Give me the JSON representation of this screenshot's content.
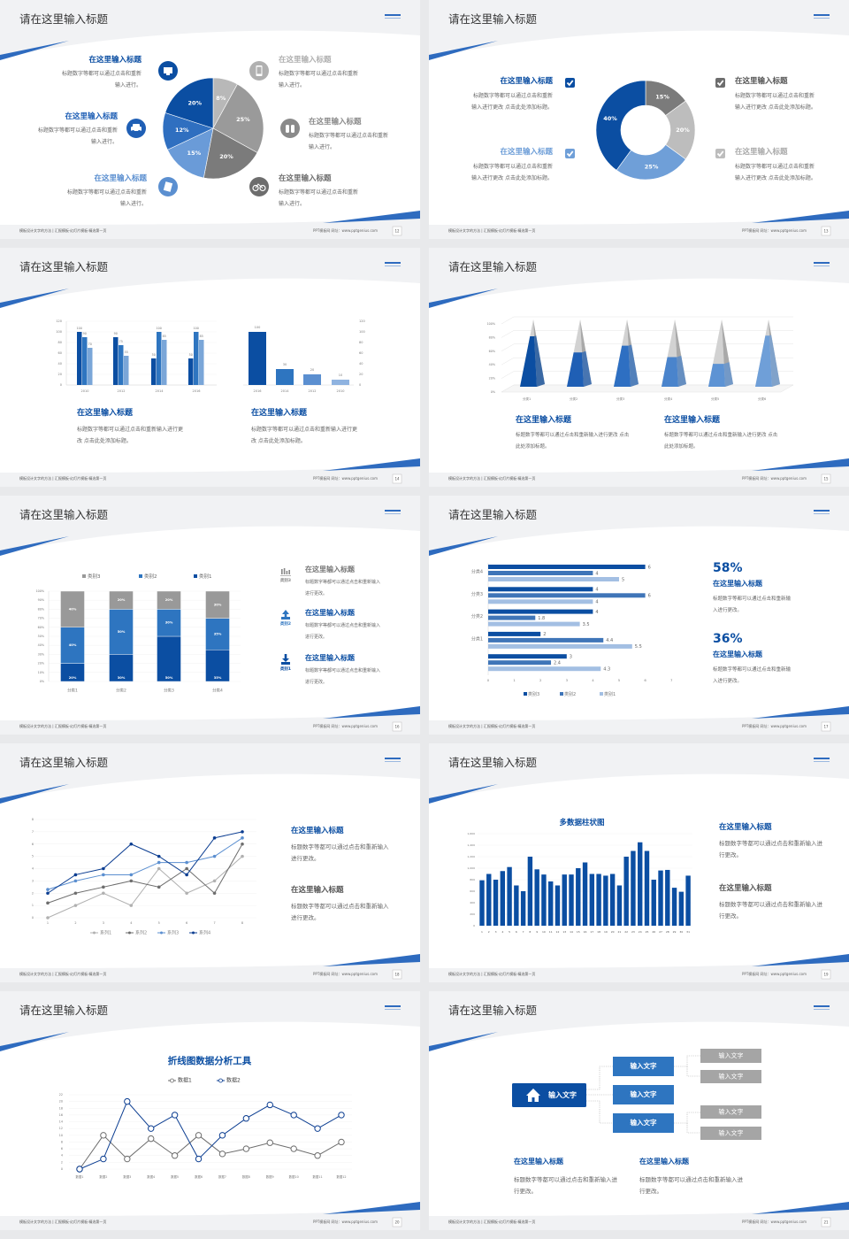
{
  "deck": {
    "slide_title": "请在这里输入标题",
    "footer_left": "模板设计文字的方法 | 汇报模板·幻灯片模板·精选第一页",
    "footer_right": "PPT模板网  网址：www.pptgenius.com",
    "colors": {
      "dark_blue": "#0b4ea2",
      "mid_blue": "#2e75c0",
      "light_blue": "#6f9fd8",
      "pale_blue": "#a3bfe3",
      "gray_light": "#bdbdbd",
      "gray": "#999999",
      "gray_dark": "#6d6d6d",
      "accent_stripe": "#2e6bbf"
    }
  },
  "slides": [
    {
      "page": "12",
      "layout": "pie",
      "chart": 0,
      "items": [
        {
          "title": "在这里输入标题",
          "desc": "标题数字等都可以通过点击和重新输入进行。",
          "icon": "monitor-icon",
          "color": "#0b4ea2"
        },
        {
          "title": "在这里输入标题",
          "desc": "标题数字等都可以通过点击和重新输入进行。",
          "icon": "car-icon",
          "color": "#1f5fb5"
        },
        {
          "title": "在这里输入标题",
          "desc": "标题数字等都可以通过点击和重新输入进行。",
          "icon": "book-icon",
          "color": "#5b8fd0"
        },
        {
          "title": "在这里输入标题",
          "desc": "标题数字等都可以通过点击和重新输入进行。",
          "icon": "phone-icon",
          "color": "#b0b0b0"
        },
        {
          "title": "在这里输入标题",
          "desc": "标题数字等都可以通过点击和重新输入进行。",
          "icon": "binoculars-icon",
          "color": "#8a8a8a"
        },
        {
          "title": "在这里输入标题",
          "desc": "标题数字等都可以通过点击和重新输入进行。",
          "icon": "bicycle-icon",
          "color": "#6d6d6d"
        }
      ]
    },
    {
      "page": "13",
      "layout": "donut",
      "chart": 1,
      "items": [
        {
          "title": "在这里输入标题",
          "desc": "标题数字等都可以通过点击和重新输入进行更改 点击此处添加标题。",
          "icon": "checkbox-icon",
          "color": "#0b4ea2"
        },
        {
          "title": "在这里输入标题",
          "desc": "标题数字等都可以通过点击和重新输入进行更改 点击此处添加标题。",
          "icon": "checkbox-icon",
          "color": "#6f9fd8"
        },
        {
          "title": "在这里输入标题",
          "desc": "标题数字等都可以通过点击和重新输入进行更改 点击此处添加标题。",
          "icon": "checkbox-icon",
          "color": "#6d6d6d"
        },
        {
          "title": "在这里输入标题",
          "desc": "标题数字等都可以通过点击和重新输入进行更改 点击此处添加标题。",
          "icon": "checkbox-icon",
          "color": "#bdbdbd"
        }
      ]
    },
    {
      "page": "14",
      "layout": "bars2",
      "charts": [
        2,
        3
      ],
      "items": [
        {
          "title": "在这里输入标题",
          "desc": "标题数字等都可以通过点击和重新输入进行更改 点击此处添加标题。"
        },
        {
          "title": "在这里输入标题",
          "desc": "标题数字等都可以通过点击和重新输入进行更改 点击此处添加标题。"
        }
      ]
    },
    {
      "page": "15",
      "layout": "pyramid",
      "chart": 4,
      "items": [
        {
          "title": "在这里输入标题",
          "desc": "标题数字等都可以通过点击和重新输入进行更改 点击此处添加标题。"
        },
        {
          "title": "在这里输入标题",
          "desc": "标题数字等都可以通过点击和重新输入进行更改 点击此处添加标题。"
        }
      ]
    },
    {
      "page": "16",
      "layout": "stacked",
      "chart": 5,
      "items": [
        {
          "title": "在这里输入标题",
          "desc": "标题数字等都可以通过点击和重新输入进行更改。",
          "icon": "bar-chart-icon",
          "tag": "类别3",
          "color": "#888888"
        },
        {
          "title": "在这里输入标题",
          "desc": "标题数字等都可以通过点击和重新输入进行更改。",
          "icon": "upload-icon",
          "tag": "类别2",
          "color": "#2e75c0"
        },
        {
          "title": "在这里输入标题",
          "desc": "标题数字等都可以通过点击和重新输入进行更改。",
          "icon": "download-icon",
          "tag": "类别1",
          "color": "#0b4ea2"
        }
      ]
    },
    {
      "page": "17",
      "layout": "hbar",
      "chart": 6,
      "items": [
        {
          "stat": "58%",
          "title": "在这里输入标题",
          "desc": "标题数字等都可以通过点击和重新输入进行更改。"
        },
        {
          "stat": "36%",
          "title": "在这里输入标题",
          "desc": "标题数字等都可以通过点击和重新输入进行更改。"
        }
      ]
    },
    {
      "page": "18",
      "layout": "line4",
      "chart": 7,
      "items": [
        {
          "title": "在这里输入标题",
          "desc": "标题数字等都可以通过点击和重新输入进行更改。",
          "color": "#0b4ea2"
        },
        {
          "title": "在这里输入标题",
          "desc": "标题数字等都可以通过点击和重新输入进行更改。",
          "color": "#555555"
        }
      ]
    },
    {
      "page": "19",
      "layout": "bar31",
      "chart": 8,
      "items": [
        {
          "title": "在这里输入标题",
          "desc": "标题数字等都可以通过点击和重新输入进行更改。",
          "color": "#0b4ea2"
        },
        {
          "title": "在这里输入标题",
          "desc": "标题数字等都可以通过点击和重新输入进行更改。",
          "color": "#555555"
        }
      ]
    },
    {
      "page": "20",
      "layout": "line2",
      "chart": 9,
      "items": []
    },
    {
      "page": "21",
      "layout": "tree",
      "tree": {
        "root": "输入文字",
        "root_icon": "home-icon",
        "mid": [
          "输入文字",
          "输入文字",
          "输入文字"
        ],
        "leaves": [
          "输入文字",
          "输入文字",
          "输入文字",
          "输入文字"
        ]
      },
      "items": [
        {
          "title": "在这里输入标题",
          "desc": "标题数字等都可以通过点击和重新输入进行更改。"
        },
        {
          "title": "在这里输入标题",
          "desc": "标题数字等都可以通过点击和重新输入进行更改。"
        }
      ]
    }
  ],
  "chart_data": [
    {
      "type": "pie",
      "slices": [
        {
          "label": "8%",
          "value": 8,
          "color": "#b8b8b8"
        },
        {
          "label": "25%",
          "value": 25,
          "color": "#9a9a9a"
        },
        {
          "label": "20%",
          "value": 20,
          "color": "#7b7b7b"
        },
        {
          "label": "15%",
          "value": 15,
          "color": "#6a9bd8"
        },
        {
          "label": "12%",
          "value": 12,
          "color": "#2f6fc0"
        },
        {
          "label": "20%",
          "value": 20,
          "color": "#0b4ea2"
        }
      ]
    },
    {
      "type": "pie",
      "donut": true,
      "slices": [
        {
          "label": "15%",
          "value": 15,
          "color": "#7b7b7b"
        },
        {
          "label": "20%",
          "value": 20,
          "color": "#bdbdbd"
        },
        {
          "label": "25%",
          "value": 25,
          "color": "#6f9fd8"
        },
        {
          "label": "40%",
          "value": 40,
          "color": "#0b4ea2"
        }
      ]
    },
    {
      "type": "bar",
      "categories": [
        "2010",
        "2012",
        "2014",
        "2016"
      ],
      "series": [
        {
          "values": [
            100,
            90,
            50,
            50
          ],
          "color": "#0b4ea2"
        },
        {
          "values": [
            90,
            75,
            100,
            100
          ],
          "color": "#2e75c0"
        },
        {
          "values": [
            70,
            55,
            85,
            85
          ],
          "color": "#7aa6d8"
        }
      ],
      "ylim": [
        0,
        120
      ],
      "yticks": [
        0,
        20,
        40,
        60,
        80,
        100,
        120
      ],
      "grid": true,
      "data_labels": true
    },
    {
      "type": "bar",
      "categories": [
        "2016",
        "2014",
        "2012",
        "2010"
      ],
      "values": [
        100,
        30,
        20,
        10
      ],
      "colors": [
        "#0b4ea2",
        "#2e75c0",
        "#5b8fd0",
        "#8fb3e0"
      ],
      "ylim": [
        0,
        120
      ],
      "yticks": [
        0,
        20,
        40,
        60,
        80,
        100,
        120
      ],
      "axis_side": "right",
      "data_labels": true
    },
    {
      "type": "bar",
      "style": "3d-pyramid",
      "categories": [
        "分类1",
        "分类2",
        "分类3",
        "分类4",
        "分类5",
        "分类6"
      ],
      "values": [
        75,
        51,
        61,
        44,
        34,
        76
      ],
      "colors": [
        "#0b4ea2",
        "#1f5fb5",
        "#2e6fc2",
        "#4a84cc",
        "#5d93d4",
        "#6f9fd8"
      ],
      "ylim": [
        0,
        100
      ],
      "yticks": [
        "0%",
        "20%",
        "40%",
        "60%",
        "80%",
        "100%"
      ],
      "grid": true
    },
    {
      "type": "bar",
      "stacked": true,
      "categories": [
        "分类1",
        "分类2",
        "分类3",
        "分类4"
      ],
      "series": [
        {
          "name": "类别1",
          "values": [
            20,
            30,
            50,
            35
          ],
          "color": "#0b4ea2"
        },
        {
          "name": "类别2",
          "values": [
            40,
            50,
            30,
            35
          ],
          "color": "#2e75c0"
        },
        {
          "name": "类别3",
          "values": [
            40,
            20,
            20,
            30
          ],
          "color": "#999999"
        }
      ],
      "legend_order": [
        2,
        1,
        0
      ],
      "legend": "top",
      "ylim": [
        0,
        100
      ],
      "yticks": [
        "0%",
        "10%",
        "20%",
        "30%",
        "40%",
        "50%",
        "60%",
        "70%",
        "80%",
        "90%",
        "100%"
      ],
      "grid": true,
      "data_labels": true
    },
    {
      "type": "bar",
      "orientation": "horizontal",
      "categories": [
        "分类4",
        "分类3",
        "分类2",
        "分类1",
        ""
      ],
      "series": [
        {
          "name": "类别3",
          "values": [
            6,
            4,
            4,
            2,
            3
          ],
          "color": "#0b4ea2"
        },
        {
          "name": "类别2",
          "values": [
            4,
            6,
            1.8,
            4.4,
            2.4
          ],
          "color": "#3f75b8"
        },
        {
          "name": "类别1",
          "values": [
            5,
            4,
            3.5,
            5.5,
            4.3
          ],
          "color": "#a3bfe3"
        }
      ],
      "xlim": [
        0,
        7
      ],
      "xticks": [
        0,
        1,
        2,
        3,
        4,
        5,
        6,
        7
      ],
      "legend": "bottom",
      "data_labels": true
    },
    {
      "type": "line",
      "x": [
        1,
        2,
        3,
        4,
        5,
        6,
        7,
        8
      ],
      "series": [
        {
          "name": "系列1",
          "values": [
            0,
            1,
            2,
            1,
            4,
            2,
            3,
            5
          ],
          "color": "#b0b0b0"
        },
        {
          "name": "系列2",
          "values": [
            1.2,
            2,
            2.5,
            3,
            2.5,
            4,
            2,
            6
          ],
          "color": "#6d6d6d"
        },
        {
          "name": "系列3",
          "values": [
            2.3,
            3,
            3.5,
            3.5,
            4.5,
            4.5,
            5,
            6.5
          ],
          "color": "#5b8fd0"
        },
        {
          "name": "系列4",
          "values": [
            2,
            3.5,
            4,
            6,
            5,
            3.5,
            6.5,
            7
          ],
          "color": "#0b3d91"
        }
      ],
      "ylim": [
        0,
        8
      ],
      "yticks": [
        0,
        1,
        2,
        3,
        4,
        5,
        6,
        7,
        8
      ],
      "legend": "bottom",
      "grid": true
    },
    {
      "type": "bar",
      "title": "多数据柱状图",
      "categories": [
        "1",
        "2",
        "3",
        "4",
        "5",
        "6",
        "7",
        "8",
        "9",
        "10",
        "11",
        "12",
        "13",
        "14",
        "15",
        "16",
        "17",
        "18",
        "19",
        "20",
        "21",
        "22",
        "23",
        "24",
        "25",
        "26",
        "27",
        "28",
        "29",
        "30",
        "31"
      ],
      "values": [
        790,
        900,
        800,
        950,
        1020,
        700,
        600,
        1200,
        980,
        890,
        770,
        700,
        890,
        890,
        1000,
        1100,
        900,
        900,
        870,
        900,
        700,
        1200,
        1300,
        1450,
        1300,
        800,
        960,
        970,
        660,
        590,
        870
      ],
      "color": "#0b4ea2",
      "ylim": [
        0,
        1600
      ],
      "yticks": [
        "0",
        "200",
        "400",
        "600",
        "800",
        "1,000",
        "1,200",
        "1,400",
        "1,600"
      ],
      "grid": true
    },
    {
      "type": "line",
      "title": "折线图数据分析工具",
      "categories": [
        "数据1",
        "数据2",
        "数据3",
        "数据4",
        "数据5",
        "数据6",
        "数据7",
        "数据8",
        "数据9",
        "数据10",
        "数据11",
        "数据12"
      ],
      "series": [
        {
          "name": "数据1",
          "values": [
            0,
            10,
            3,
            9,
            4,
            10,
            4.5,
            6,
            7.8,
            6,
            4,
            8
          ],
          "color": "#6d6d6d"
        },
        {
          "name": "数据2",
          "values": [
            0,
            3,
            20,
            12,
            16,
            3,
            10,
            15,
            19,
            16,
            12,
            16
          ],
          "color": "#0b3d91"
        }
      ],
      "ylim": [
        0,
        22
      ],
      "yticks": [
        0,
        2,
        4,
        6,
        8,
        10,
        12,
        14,
        16,
        18,
        20,
        22
      ],
      "legend": "top",
      "grid": true
    }
  ]
}
